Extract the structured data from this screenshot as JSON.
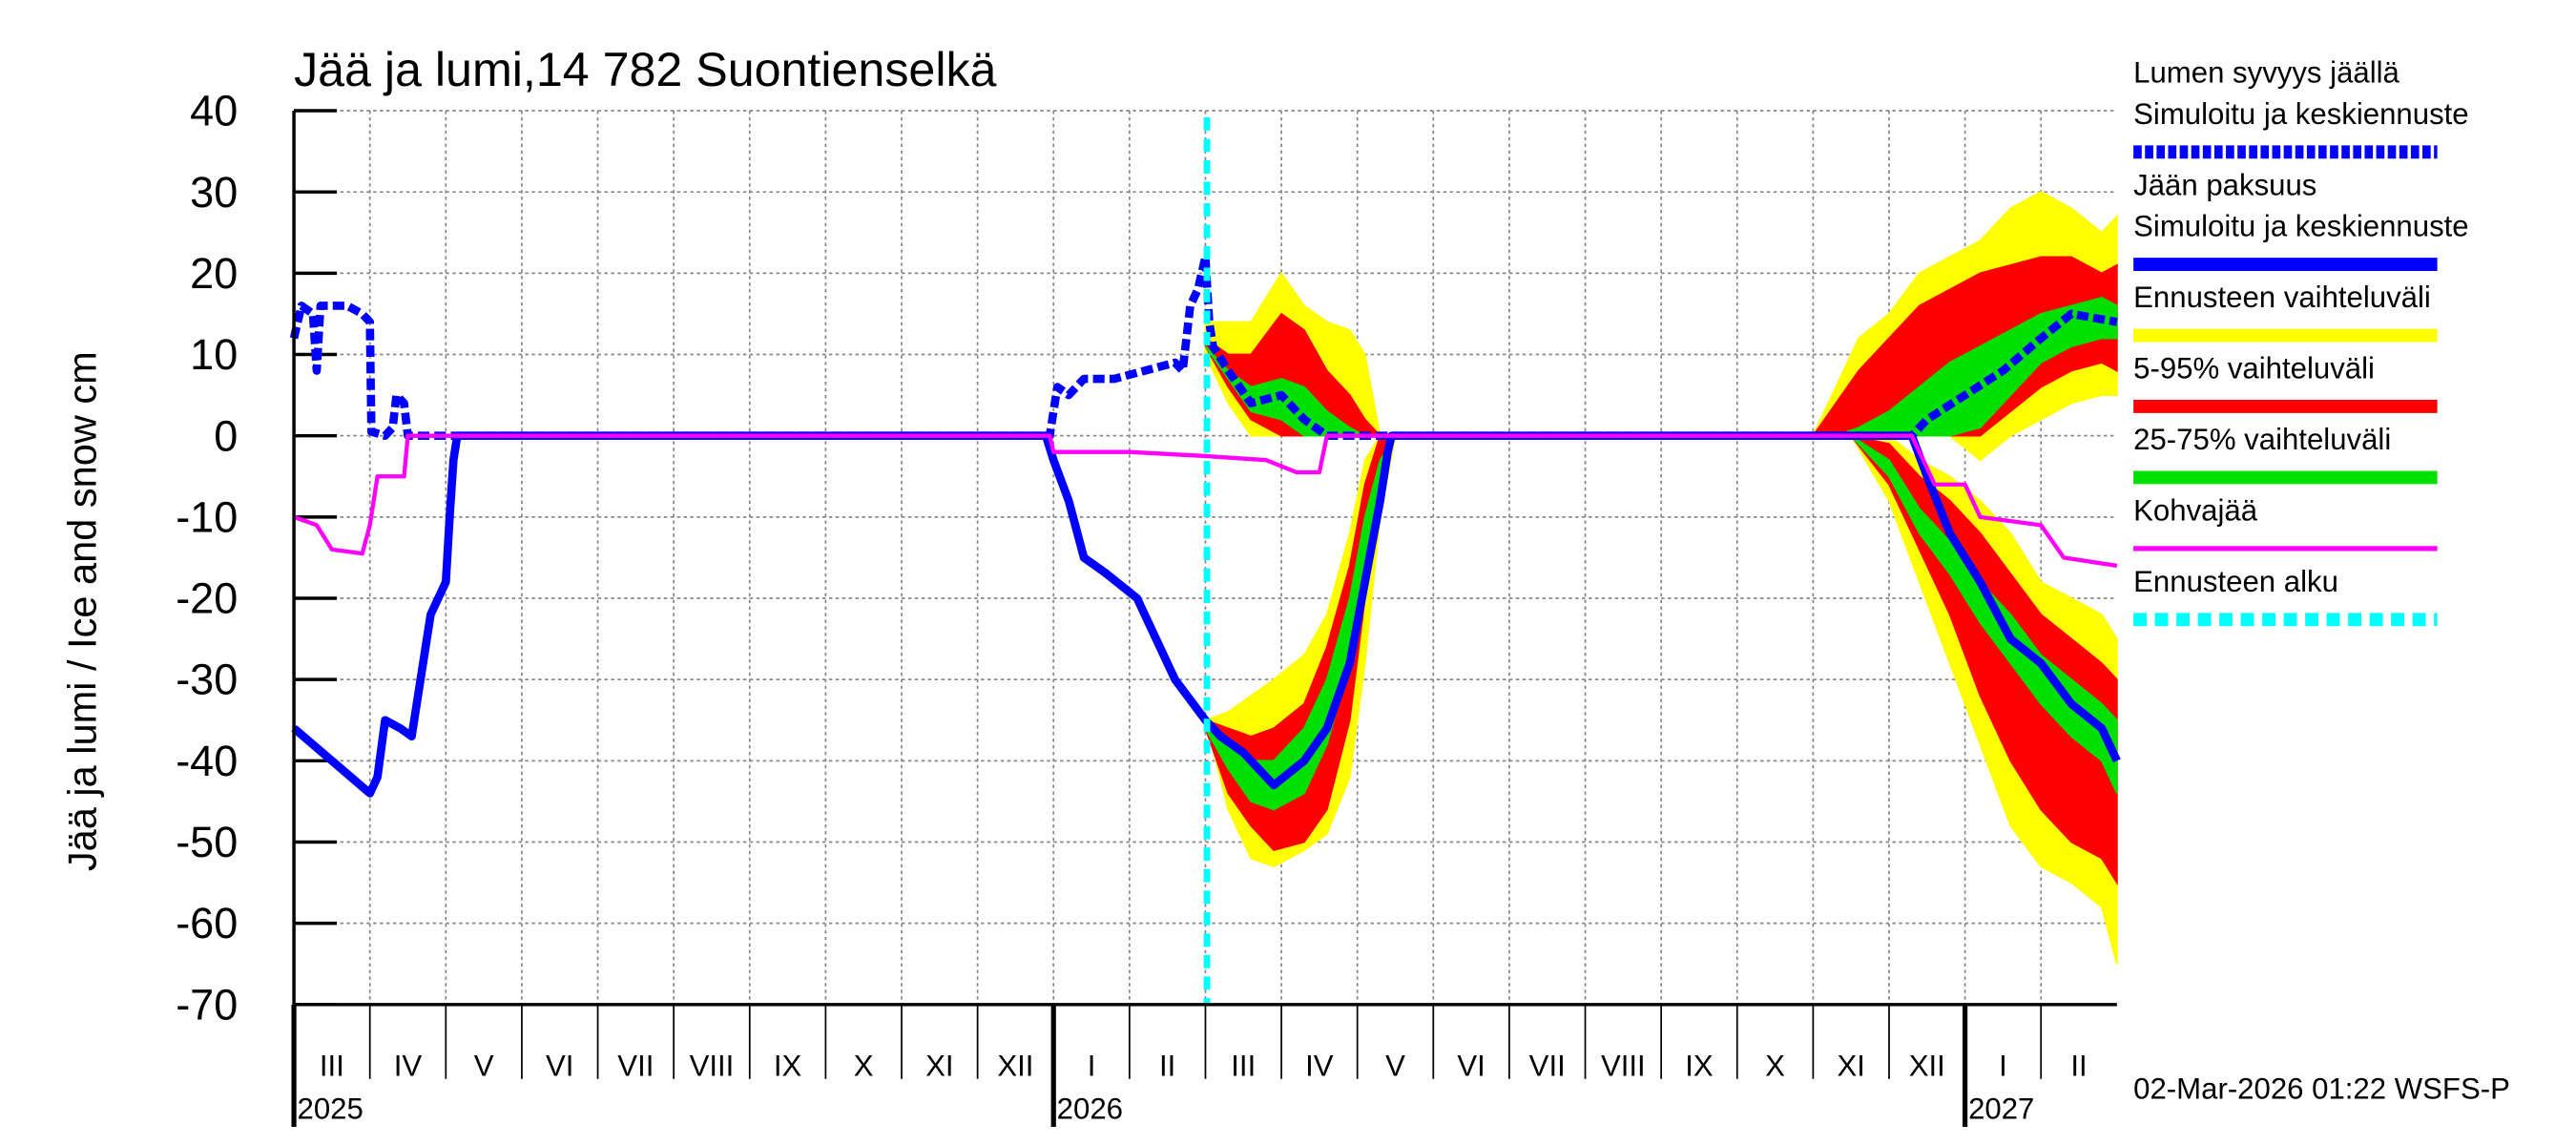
{
  "chart_data": {
    "type": "area-line",
    "title": "Jää ja lumi,14 782 Suontienselkä",
    "ylabel": "Jää ja lumi / Ice and snow    cm",
    "footer": "02-Mar-2026 01:22 WSFS-P",
    "xlim": [
      0,
      24
    ],
    "ylim": [
      -70,
      40
    ],
    "yticks": [
      40,
      30,
      20,
      10,
      0,
      -10,
      -20,
      -30,
      -40,
      -50,
      -60,
      -70
    ],
    "grid": true,
    "xgrid": [
      1,
      2,
      3,
      4,
      5,
      6,
      7,
      8,
      9,
      10,
      11,
      12,
      13,
      14,
      15,
      16,
      17,
      18,
      19,
      20,
      21,
      22,
      23
    ],
    "xticks": [
      {
        "value": 0.5,
        "label": "III"
      },
      {
        "value": 1.5,
        "label": "IV"
      },
      {
        "value": 2.5,
        "label": "V"
      },
      {
        "value": 3.5,
        "label": "VI"
      },
      {
        "value": 4.5,
        "label": "VII"
      },
      {
        "value": 5.5,
        "label": "VIII"
      },
      {
        "value": 6.5,
        "label": "IX"
      },
      {
        "value": 7.5,
        "label": "X"
      },
      {
        "value": 8.5,
        "label": "XI"
      },
      {
        "value": 9.5,
        "label": "XII"
      },
      {
        "value": 10.5,
        "label": "I"
      },
      {
        "value": 11.5,
        "label": "II"
      },
      {
        "value": 12.5,
        "label": "III"
      },
      {
        "value": 13.5,
        "label": "IV"
      },
      {
        "value": 14.5,
        "label": "V"
      },
      {
        "value": 15.5,
        "label": "VI"
      },
      {
        "value": 16.5,
        "label": "VII"
      },
      {
        "value": 17.5,
        "label": "VIII"
      },
      {
        "value": 18.5,
        "label": "IX"
      },
      {
        "value": 19.5,
        "label": "X"
      },
      {
        "value": 20.5,
        "label": "XI"
      },
      {
        "value": 21.5,
        "label": "XII"
      },
      {
        "value": 22.5,
        "label": "I"
      },
      {
        "value": 23.5,
        "label": "II"
      }
    ],
    "year_labels": [
      {
        "value": 0,
        "label": "2025"
      },
      {
        "value": 10,
        "label": "2026"
      },
      {
        "value": 22,
        "label": "2027"
      }
    ],
    "bands": [
      {
        "name": [
          "Ennusteen vaihteluväli"
        ],
        "color": "#ffff00",
        "areas": [
          {
            "x": [
              12.0,
              12.3,
              12.6,
              13.0,
              13.3,
              13.6,
              13.9,
              14.1,
              14.3
            ],
            "low": [
              10,
              4,
              0,
              0,
              0,
              0,
              0,
              0,
              0
            ],
            "high": [
              14,
              14,
              14,
              20,
              16,
              14,
              13,
              10,
              0
            ]
          },
          {
            "x": [
              12.0,
              12.3,
              12.6,
              12.9,
              13.3,
              13.6,
              13.9,
              14.1,
              14.3,
              14.5
            ],
            "low": [
              -35,
              -46,
              -52,
              -53,
              -51,
              -49,
              -42,
              -28,
              -10,
              0
            ],
            "high": [
              -35,
              -34,
              -32,
              -30,
              -27,
              -22,
              -12,
              -3,
              0,
              0
            ]
          },
          {
            "x": [
              20.0,
              20.3,
              20.6,
              21.0,
              21.4,
              21.8,
              22.2,
              22.6,
              23.0,
              23.4,
              23.8,
              24.0
            ],
            "low": [
              0,
              0,
              0,
              0,
              0,
              0,
              -3,
              0,
              2,
              4,
              5,
              5
            ],
            "high": [
              0,
              6,
              12,
              15,
              20,
              22,
              24,
              28,
              30,
              28,
              25,
              27
            ]
          },
          {
            "x": [
              20.5,
              21.0,
              21.4,
              21.8,
              22.2,
              22.6,
              23.0,
              23.4,
              23.8,
              24.0
            ],
            "low": [
              0,
              -8,
              -18,
              -28,
              -38,
              -48,
              -53,
              -55,
              -58,
              -65
            ],
            "high": [
              0,
              0,
              -3,
              -5,
              -8,
              -12,
              -18,
              -20,
              -22,
              -25
            ]
          }
        ]
      },
      {
        "name": [
          "5-95% vaihteluväli"
        ],
        "color": "#ff0000",
        "areas": [
          {
            "x": [
              12.0,
              12.3,
              12.6,
              13.0,
              13.3,
              13.6,
              13.9,
              14.1,
              14.3
            ],
            "low": [
              11,
              6,
              2,
              0,
              0,
              0,
              0,
              0,
              0
            ],
            "high": [
              12,
              10,
              10,
              15,
              13,
              8,
              5,
              2,
              0
            ]
          },
          {
            "x": [
              12.0,
              12.3,
              12.6,
              12.9,
              13.3,
              13.6,
              13.9,
              14.1,
              14.3,
              14.5
            ],
            "low": [
              -36,
              -44,
              -48,
              -51,
              -50,
              -46,
              -35,
              -20,
              -5,
              0
            ],
            "high": [
              -35,
              -36,
              -37,
              -36,
              -33,
              -26,
              -16,
              -6,
              0,
              0
            ]
          },
          {
            "x": [
              20.0,
              20.3,
              20.6,
              21.0,
              21.4,
              21.8,
              22.2,
              22.6,
              23.0,
              23.4,
              23.8,
              24.0
            ],
            "low": [
              0,
              0,
              0,
              0,
              0,
              0,
              0,
              3,
              6,
              8,
              9,
              8
            ],
            "high": [
              0,
              4,
              8,
              12,
              16,
              18,
              20,
              21,
              22,
              22,
              20,
              21
            ]
          },
          {
            "x": [
              20.5,
              21.0,
              21.4,
              21.8,
              22.2,
              22.6,
              23.0,
              23.4,
              23.8,
              24.0
            ],
            "low": [
              0,
              -6,
              -14,
              -22,
              -32,
              -40,
              -46,
              -50,
              -52,
              -55
            ],
            "high": [
              0,
              -1,
              -5,
              -8,
              -12,
              -17,
              -22,
              -25,
              -28,
              -30
            ]
          }
        ]
      },
      {
        "name": [
          "25-75% vaihteluväli"
        ],
        "color": "#00e000",
        "areas": [
          {
            "x": [
              12.0,
              12.3,
              12.6,
              13.0,
              13.3,
              13.6,
              13.9,
              14.1,
              14.3
            ],
            "low": [
              11,
              7,
              3,
              2,
              0,
              0,
              0,
              0,
              0
            ],
            "high": [
              11,
              8,
              6,
              7,
              6,
              3,
              1,
              0,
              0
            ]
          },
          {
            "x": [
              12.0,
              12.3,
              12.6,
              12.9,
              13.3,
              13.6,
              13.9,
              14.1,
              14.3,
              14.5
            ],
            "low": [
              -36,
              -41,
              -45,
              -46,
              -44,
              -38,
              -28,
              -15,
              -5,
              0
            ],
            "high": [
              -36,
              -38,
              -40,
              -40,
              -36,
              -30,
              -20,
              -10,
              -3,
              0
            ]
          },
          {
            "x": [
              20.0,
              20.3,
              20.6,
              21.0,
              21.4,
              21.8,
              22.2,
              22.6,
              23.0,
              23.4,
              23.8,
              24.0
            ],
            "low": [
              0,
              0,
              0,
              0,
              0,
              0,
              1,
              5,
              9,
              11,
              12,
              12
            ],
            "high": [
              0,
              0,
              1,
              3,
              6,
              9,
              11,
              13,
              15,
              16,
              17,
              16
            ]
          },
          {
            "x": [
              20.5,
              21.0,
              21.4,
              21.8,
              22.2,
              22.6,
              23.0,
              23.4,
              23.8,
              24.0
            ],
            "low": [
              0,
              -5,
              -12,
              -17,
              -23,
              -28,
              -33,
              -37,
              -40,
              -44
            ],
            "high": [
              0,
              -3,
              -9,
              -13,
              -18,
              -22,
              -27,
              -30,
              -33,
              -35
            ]
          }
        ]
      }
    ],
    "series": [
      {
        "name": [
          "Lumen syvyys jäällä",
          "Simuloitu ja keskiennuste"
        ],
        "color": "#0000ff",
        "dashed": true,
        "x": [
          0,
          0.1,
          0.25,
          0.3,
          0.35,
          0.5,
          0.7,
          0.9,
          1.0,
          1.02,
          1.2,
          1.3,
          1.35,
          1.45,
          1.5,
          9.95,
          10.05,
          10.2,
          10.4,
          10.8,
          11.2,
          11.6,
          11.7,
          11.8,
          11.9,
          12.0,
          12.05,
          12.1,
          12.3,
          12.6,
          13.0,
          13.3,
          13.6,
          21.3,
          21.5,
          22.0,
          22.5,
          23.0,
          23.4,
          24.0
        ],
        "values": [
          12,
          16,
          15,
          8,
          16,
          16,
          16,
          15,
          14,
          0.5,
          0,
          1,
          5,
          4,
          0,
          0,
          6,
          5,
          7,
          7,
          8,
          9,
          8,
          16,
          18,
          22,
          14,
          11,
          8,
          4,
          5,
          2,
          0,
          0,
          2,
          5,
          8,
          12,
          15,
          14
        ]
      },
      {
        "name": [
          "Jään paksuus",
          "Simuloitu ja keskiennuste"
        ],
        "color": "#0000ff",
        "dashed": false,
        "x": [
          0,
          0.5,
          1.0,
          1.1,
          1.2,
          1.4,
          1.55,
          1.7,
          1.8,
          2.0,
          2.05,
          2.1,
          2.15,
          9.9,
          10.0,
          10.2,
          10.4,
          10.7,
          11.1,
          11.3,
          11.6,
          12.0,
          12.2,
          12.5,
          12.9,
          13.3,
          13.6,
          13.9,
          14.1,
          14.3,
          14.4,
          14.45,
          21.3,
          21.5,
          21.8,
          22.2,
          22.6,
          23.0,
          23.4,
          23.8,
          24.0
        ],
        "values": [
          -36,
          -40,
          -44,
          -42,
          -35,
          -36,
          -37,
          -28,
          -22,
          -18,
          -10,
          -3,
          0,
          0,
          -3,
          -8,
          -15,
          -17,
          -20,
          -24,
          -30,
          -35,
          -37,
          -39,
          -43,
          -40,
          -36,
          -28,
          -18,
          -8,
          -2,
          0,
          0,
          -5,
          -12,
          -18,
          -25,
          -28,
          -33,
          -36,
          -40
        ]
      },
      {
        "name": [
          "Kohvajää"
        ],
        "color": "#ff00ff",
        "dashed": false,
        "x": [
          0,
          0.3,
          0.5,
          0.9,
          1.0,
          1.1,
          1.45,
          1.5,
          9.95,
          10.0,
          11.0,
          12.0,
          12.8,
          13.2,
          13.5,
          13.6,
          21.3,
          21.6,
          22.0,
          22.2,
          23.0,
          23.3,
          24.0
        ],
        "values": [
          -10,
          -11,
          -14,
          -14.5,
          -11,
          -5,
          -5,
          0,
          0,
          -2,
          -2,
          -2.5,
          -3,
          -4.5,
          -4.5,
          0,
          0,
          -6,
          -6,
          -10,
          -11,
          -15,
          -16
        ]
      }
    ],
    "forecast_start": {
      "name": [
        "Ennusteen alku"
      ],
      "x": 12.02,
      "color": "#00ffff"
    }
  }
}
